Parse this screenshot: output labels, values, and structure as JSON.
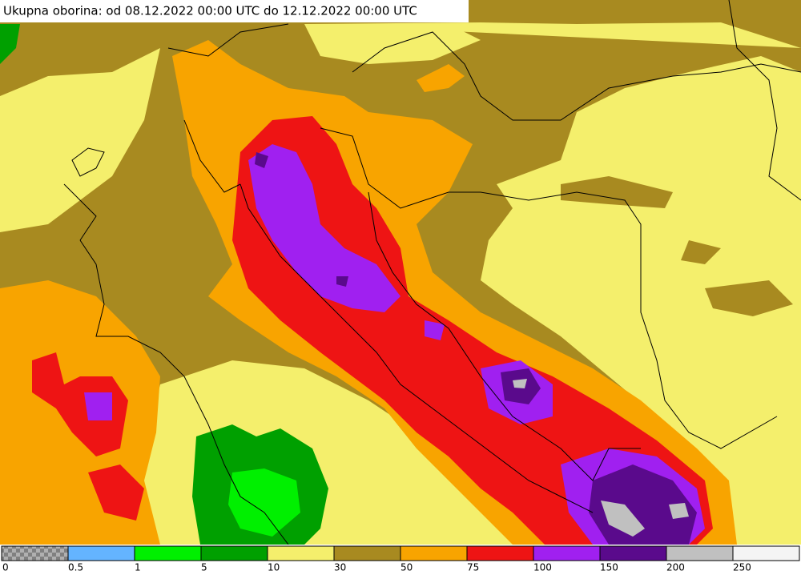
{
  "header": {
    "title": "Ukupna oborina: od 08.12.2022 00:00 UTC do 12.12.2022 00:00 UTC"
  },
  "legend": {
    "labels": [
      "0",
      "0.5",
      "1",
      "5",
      "10",
      "30",
      "50",
      "75",
      "100",
      "150",
      "200",
      "250"
    ],
    "colors": [
      "#808080",
      "#64b4ff",
      "#00f000",
      "#00a000",
      "#f4ef6c",
      "#a88a20",
      "#f8a400",
      "#ee1414",
      "#a020f0",
      "#5a0a8c",
      "#c0c0c0",
      "#f4f4f4"
    ]
  }
}
